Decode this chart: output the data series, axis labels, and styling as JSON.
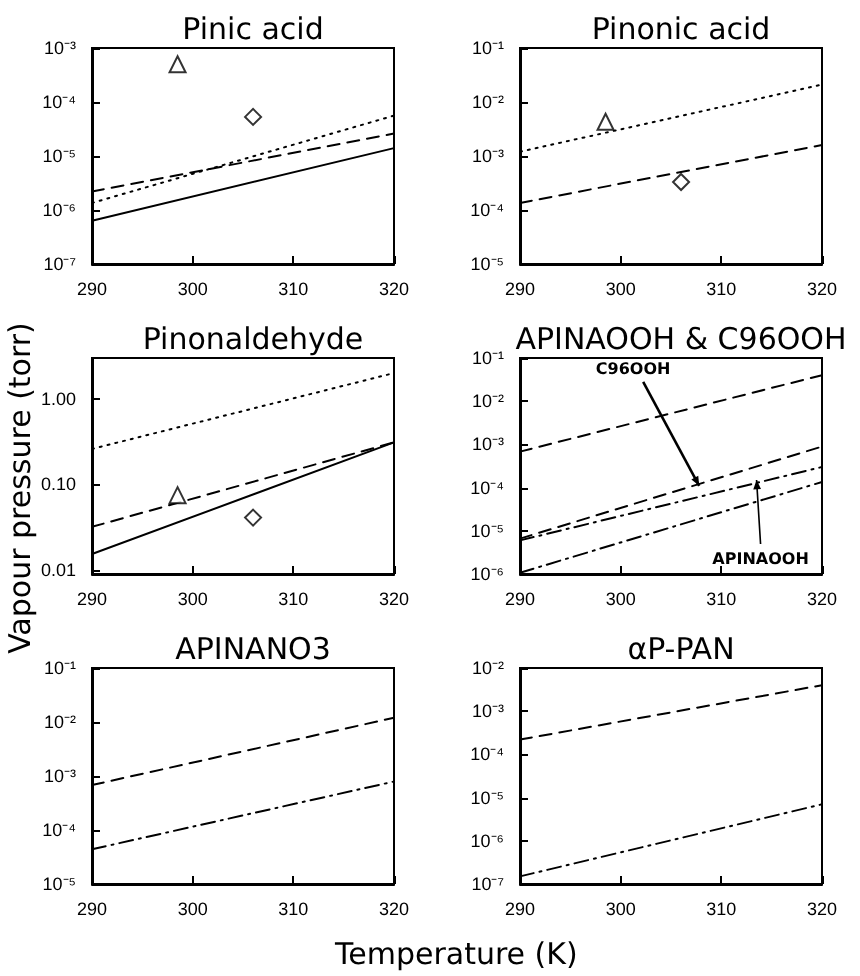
{
  "chart_data": [
    {
      "type": "line",
      "title": "Pinic acid",
      "xlim": [
        290,
        320
      ],
      "xticks": [
        290,
        300,
        310,
        320
      ],
      "ylim": [
        1e-07,
        0.001
      ],
      "log": true,
      "yticks": [
        {
          "value": 1e-07,
          "label": "10⁻⁷"
        },
        {
          "value": 1e-06,
          "label": "10⁻⁶"
        },
        {
          "value": 1e-05,
          "label": "10⁻⁵"
        },
        {
          "value": 0.0001,
          "label": "10⁻⁴"
        },
        {
          "value": 0.001,
          "label": "10⁻³"
        }
      ],
      "series": [
        {
          "color": "#000000",
          "line_style": "solid",
          "x": [
            290,
            320
          ],
          "values": [
            6.3e-07,
            1.4e-05
          ]
        },
        {
          "color": "#000000",
          "line_style": "dashed",
          "x": [
            290,
            320
          ],
          "values": [
            2.2e-06,
            2.6e-05
          ]
        },
        {
          "color": "#000000",
          "line_style": "dotted",
          "x": [
            290,
            320
          ],
          "values": [
            1.35e-06,
            5.6e-05
          ]
        },
        {
          "type": "scatter",
          "marker": "triangle",
          "color": "#000000",
          "x": [
            298.5
          ],
          "values": [
            0.0005
          ]
        },
        {
          "type": "scatter",
          "marker": "diamond",
          "color": "#000000",
          "x": [
            306
          ],
          "values": [
            5.3e-05
          ]
        }
      ]
    },
    {
      "type": "line",
      "title": "Pinonic acid",
      "xlim": [
        290,
        320
      ],
      "xticks": [
        290,
        300,
        310,
        320
      ],
      "ylim": [
        1e-05,
        0.1
      ],
      "log": true,
      "yticks": [
        {
          "value": 1e-05,
          "label": "10⁻⁵"
        },
        {
          "value": 0.0001,
          "label": "10⁻⁴"
        },
        {
          "value": 0.001,
          "label": "10⁻³"
        },
        {
          "value": 0.01,
          "label": "10⁻²"
        },
        {
          "value": 0.1,
          "label": "10⁻¹"
        }
      ],
      "series": [
        {
          "color": "#000000",
          "line_style": "dotted",
          "x": [
            290,
            320
          ],
          "values": [
            0.0012,
            0.021
          ]
        },
        {
          "color": "#000000",
          "line_style": "dashed",
          "x": [
            290,
            320
          ],
          "values": [
            0.000135,
            0.0016
          ]
        },
        {
          "type": "scatter",
          "marker": "triangle",
          "color": "#000000",
          "x": [
            298.5
          ],
          "values": [
            0.0043
          ]
        },
        {
          "type": "scatter",
          "marker": "diamond",
          "color": "#000000",
          "x": [
            306
          ],
          "values": [
            0.00033
          ]
        }
      ]
    },
    {
      "type": "line",
      "title": "Pinonaldehyde",
      "ylabel": "Vapour pressure (torr)",
      "xlim": [
        290,
        320
      ],
      "xticks": [
        290,
        300,
        310,
        320
      ],
      "ylim": [
        0.009,
        3
      ],
      "log": true,
      "yticks": [
        0.01,
        {
          "value": 0.1,
          "label": "0.10"
        },
        {
          "value": 1,
          "label": "1.00"
        }
      ],
      "series": [
        {
          "color": "#000000",
          "line_style": "dotted",
          "x": [
            290,
            320
          ],
          "values": [
            0.26,
            2.0
          ]
        },
        {
          "color": "#000000",
          "line_style": "dashed",
          "x": [
            290,
            320
          ],
          "values": [
            0.032,
            0.31
          ]
        },
        {
          "color": "#000000",
          "line_style": "solid",
          "x": [
            290,
            320
          ],
          "values": [
            0.0154,
            0.31
          ]
        },
        {
          "type": "scatter",
          "marker": "triangle",
          "color": "#000000",
          "x": [
            298.5
          ],
          "values": [
            0.075
          ]
        },
        {
          "type": "scatter",
          "marker": "diamond",
          "color": "#000000",
          "x": [
            306
          ],
          "values": [
            0.041
          ]
        }
      ]
    },
    {
      "type": "line",
      "title": "APINAOOH & C96OOH",
      "xlim": [
        290,
        320
      ],
      "xticks": [
        290,
        300,
        310,
        320
      ],
      "ylim": [
        1e-06,
        0.1
      ],
      "log": true,
      "yticks": [
        {
          "value": 1e-06,
          "label": "10⁻⁶"
        },
        {
          "value": 1e-05,
          "label": "10⁻⁵"
        },
        {
          "value": 0.0001,
          "label": "10⁻⁴"
        },
        {
          "value": 0.001,
          "label": "10⁻³"
        },
        {
          "value": 0.01,
          "label": "10⁻²"
        },
        {
          "value": 0.1,
          "label": "10⁻¹"
        }
      ],
      "annotations": [
        {
          "text": "C96OOH",
          "x": 307.8,
          "y": 0.00011
        },
        {
          "text": "APINAOOH",
          "x": 313.5,
          "y": 0.00015
        }
      ],
      "series": [
        {
          "color": "#000000",
          "line_style": "dashed",
          "x": [
            290,
            320
          ],
          "values": [
            0.00068,
            0.04
          ]
        },
        {
          "color": "#000000",
          "line_style": "dashed",
          "x": [
            290,
            320
          ],
          "values": [
            6.6e-06,
            0.00089
          ]
        },
        {
          "color": "#000000",
          "line_style": "dashdot",
          "x": [
            290,
            320
          ],
          "values": [
            6e-06,
            0.0003
          ]
        },
        {
          "color": "#000000",
          "line_style": "dashdot",
          "x": [
            290,
            320
          ],
          "values": [
            1.07e-06,
            0.000135
          ]
        }
      ]
    },
    {
      "type": "line",
      "title": "APINANO3",
      "xlabel": "Temperature (K)",
      "xlim": [
        290,
        320
      ],
      "xticks": [
        290,
        300,
        310,
        320
      ],
      "ylim": [
        1e-05,
        0.1
      ],
      "log": true,
      "yticks": [
        {
          "value": 1e-05,
          "label": "10⁻⁵"
        },
        {
          "value": 0.0001,
          "label": "10⁻⁴"
        },
        {
          "value": 0.001,
          "label": "10⁻³"
        },
        {
          "value": 0.01,
          "label": "10⁻²"
        },
        {
          "value": 0.1,
          "label": "10⁻¹"
        }
      ],
      "series": [
        {
          "color": "#000000",
          "line_style": "dashed",
          "x": [
            290,
            320
          ],
          "values": [
            0.00068,
            0.012
          ]
        },
        {
          "color": "#000000",
          "line_style": "dashdot",
          "x": [
            290,
            320
          ],
          "values": [
            4.4e-05,
            0.00079
          ]
        }
      ]
    },
    {
      "type": "line",
      "title": "αP-PAN",
      "xlim": [
        290,
        320
      ],
      "xticks": [
        290,
        300,
        310,
        320
      ],
      "ylim": [
        1e-07,
        0.01
      ],
      "log": true,
      "yticks": [
        {
          "value": 1e-07,
          "label": "10⁻⁷"
        },
        {
          "value": 1e-06,
          "label": "10⁻⁶"
        },
        {
          "value": 1e-05,
          "label": "10⁻⁵"
        },
        {
          "value": 0.0001,
          "label": "10⁻⁴"
        },
        {
          "value": 0.001,
          "label": "10⁻³"
        },
        {
          "value": 0.01,
          "label": "10⁻²"
        }
      ],
      "series": [
        {
          "color": "#000000",
          "line_style": "dashed",
          "x": [
            290,
            320
          ],
          "values": [
            0.00022,
            0.004
          ]
        },
        {
          "color": "#000000",
          "line_style": "dashdot",
          "x": [
            290,
            320
          ],
          "values": [
            1.5e-07,
            7e-06
          ]
        }
      ]
    }
  ]
}
